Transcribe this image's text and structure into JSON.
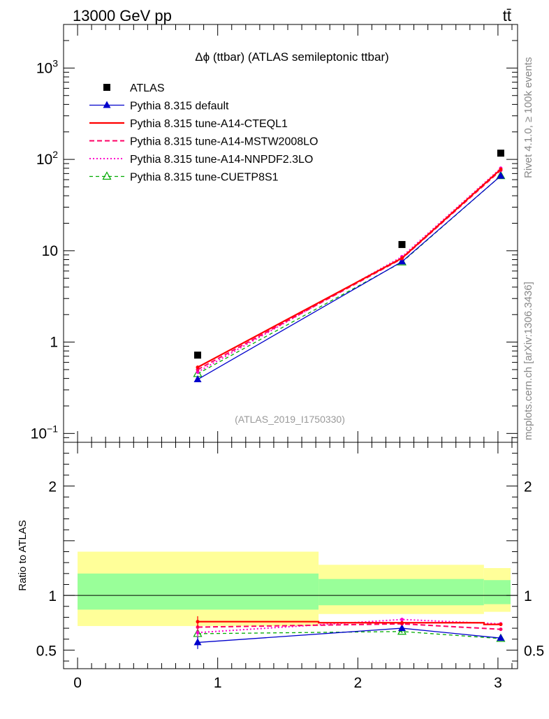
{
  "header": {
    "energy_label": "13000 GeV pp",
    "process_label": "tt̄",
    "plot_title": "Δϕ (ttbar) (ATLAS semileptonic ttbar)",
    "analysis_id": "(ATLAS_2019_I1750330)",
    "side_label_top": "Rivet 4.1.0, ≥ 100k events",
    "side_label_bottom": "mcplots.cern.ch [arXiv:1306.3436]"
  },
  "colors": {
    "data": "#000000",
    "default": "#0000cc",
    "cteql1": "#ff0000",
    "mstw": "#ff0066",
    "nnpdf": "#ff00cc",
    "cuetp": "#00aa00",
    "band_yellow": "#ffff99",
    "band_green": "#99ff99"
  },
  "chart_data": [
    {
      "type": "line",
      "panel": "main",
      "yscale": "log",
      "ylim": [
        0.08,
        3000
      ],
      "xlim": [
        -0.1,
        3.14
      ],
      "y_ticks": [
        {
          "value": 0.1,
          "base": "10",
          "exp": "−1",
          "label": ""
        },
        {
          "value": 1,
          "base": "",
          "exp": "",
          "label": "1"
        },
        {
          "value": 10,
          "base": "",
          "exp": "",
          "label": "10"
        },
        {
          "value": 100,
          "base": "10",
          "exp": "2",
          "label": ""
        },
        {
          "value": 1000,
          "base": "10",
          "exp": "3",
          "label": ""
        }
      ],
      "x": [
        0.857,
        2.315,
        3.02
      ],
      "series": [
        {
          "key": "atlas",
          "name": "ATLAS",
          "values": [
            0.72,
            11.7,
            117
          ],
          "style": "data"
        },
        {
          "key": "default",
          "name": "Pythia 8.315 default",
          "values": [
            0.39,
            7.6,
            66
          ],
          "style": "line-filled-triangle"
        },
        {
          "key": "cteql1",
          "name": "Pythia 8.315 tune-A14-CTEQL1",
          "values": [
            0.53,
            8.3,
            78
          ],
          "style": "solid"
        },
        {
          "key": "mstw",
          "name": "Pythia 8.315 tune-A14-MSTW2008LO",
          "values": [
            0.5,
            8.2,
            76
          ],
          "style": "dashed"
        },
        {
          "key": "nnpdf",
          "name": "Pythia 8.315 tune-A14-NNPDF2.3LO",
          "values": [
            0.47,
            8.6,
            80
          ],
          "style": "dotted"
        },
        {
          "key": "cuetp",
          "name": "Pythia 8.315 tune-CUETP8S1",
          "values": [
            0.45,
            7.5,
            66
          ],
          "style": "dashed-open-triangle"
        }
      ]
    },
    {
      "type": "line",
      "panel": "ratio",
      "ylabel": "Ratio to ATLAS",
      "ylim": [
        0.33,
        2.4
      ],
      "xlim": [
        -0.1,
        3.14
      ],
      "y_ticks": [
        {
          "value": 0.5,
          "label": "0.5"
        },
        {
          "value": 1,
          "label": "1"
        },
        {
          "value": 2,
          "label": "2"
        }
      ],
      "x_ticks": [
        {
          "value": 0,
          "label": "0"
        },
        {
          "value": 1,
          "label": "1"
        },
        {
          "value": 2,
          "label": "2"
        },
        {
          "value": 3,
          "label": "3"
        }
      ],
      "bins": [
        {
          "lo": 0.0,
          "hi": 1.72,
          "yellow": [
            0.72,
            1.4
          ],
          "green": [
            0.87,
            1.2
          ]
        },
        {
          "lo": 1.72,
          "hi": 2.9,
          "yellow": [
            0.83,
            1.28
          ],
          "green": [
            0.91,
            1.15
          ]
        },
        {
          "lo": 2.9,
          "hi": 3.14,
          "yellow": [
            0.85,
            1.25
          ],
          "green": [
            0.92,
            1.14
          ]
        }
      ],
      "x": [
        0.857,
        2.315,
        3.02
      ],
      "series": [
        {
          "key": "default",
          "name": "Pythia 8.315 default",
          "values": [
            0.57,
            0.7,
            0.61
          ],
          "err": [
            0.06,
            0.015,
            0.01
          ]
        },
        {
          "key": "cteql1",
          "name": "Pythia 8.315 tune-A14-CTEQL1",
          "values": [
            0.76,
            0.75,
            0.735
          ],
          "err": [
            0.05,
            0.015,
            0.01
          ],
          "step_edges": [
            0.857,
            1.72,
            2.9,
            3.02
          ]
        },
        {
          "key": "mstw",
          "name": "Pythia 8.315 tune-A14-MSTW2008LO",
          "values": [
            0.71,
            0.74,
            0.69
          ],
          "err": [
            0.04,
            0.015,
            0.01
          ]
        },
        {
          "key": "nnpdf",
          "name": "Pythia 8.315 tune-A14-NNPDF2.3LO",
          "values": [
            0.66,
            0.78,
            0.74
          ],
          "err": [
            0.04,
            0.015,
            0.01
          ]
        },
        {
          "key": "cuetp",
          "name": "Pythia 8.315 tune-CUETP8S1",
          "values": [
            0.65,
            0.67,
            0.605
          ],
          "err": [
            0.04,
            0.015,
            0.01
          ]
        }
      ]
    }
  ]
}
